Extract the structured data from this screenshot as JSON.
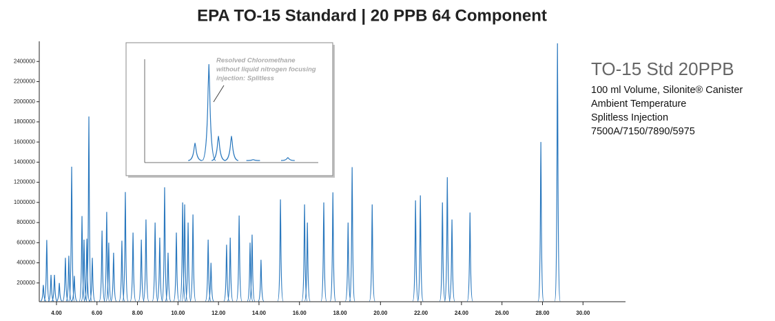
{
  "chart_data": [
    {
      "type": "chromatogram",
      "title": "EPA TO-15 Standard | 20 PPB 64 Component",
      "subtitle": "TO-15 Std 20PPB",
      "notes": [
        "100 ml Volume, Silonite® Canister",
        "Ambient Temperature",
        "Splitless Injection",
        "7500A/7150/7890/5975"
      ],
      "color": "#2a78be",
      "x": [
        3.35,
        3.52,
        3.73,
        3.9,
        4.14,
        4.44,
        4.61,
        4.75,
        4.88,
        5.26,
        5.36,
        5.5,
        5.6,
        5.77,
        6.25,
        6.48,
        6.58,
        6.82,
        7.23,
        7.4,
        7.78,
        8.19,
        8.42,
        8.87,
        9.1,
        9.34,
        9.51,
        9.92,
        10.23,
        10.33,
        10.5,
        10.74,
        11.49,
        11.63,
        12.4,
        12.58,
        13.02,
        13.56,
        13.66,
        14.1,
        15.06,
        16.25,
        16.39,
        17.2,
        17.65,
        18.4,
        18.6,
        19.59,
        21.73,
        21.97,
        23.06,
        23.3,
        23.53,
        24.42,
        27.92,
        28.74
      ],
      "values": [
        180000,
        627000,
        280000,
        280000,
        200000,
        450000,
        470000,
        1355000,
        270000,
        865000,
        630000,
        640000,
        1853000,
        450000,
        720000,
        906000,
        600000,
        500000,
        620000,
        1103000,
        700000,
        630000,
        830000,
        800000,
        650000,
        1150000,
        500000,
        700000,
        1000000,
        980000,
        800000,
        880000,
        630000,
        400000,
        580000,
        650000,
        870000,
        600000,
        680000,
        430000,
        1030000,
        980000,
        800000,
        1000000,
        1100000,
        800000,
        1350000,
        980000,
        1020000,
        1070000,
        1000000,
        1250000,
        830000,
        900000,
        1600000,
        2580000
      ],
      "xlim": [
        3.15,
        32.1
      ],
      "ylim": [
        0,
        2600000
      ],
      "xticks": [
        {
          "value": 4,
          "label": "4.00"
        },
        {
          "value": 6,
          "label": "6.00"
        },
        {
          "value": 8,
          "label": "8.00"
        },
        {
          "value": 10,
          "label": "10.00"
        },
        {
          "value": 12,
          "label": "12.00"
        },
        {
          "value": 14,
          "label": "14.00"
        },
        {
          "value": 16,
          "label": "16.00"
        },
        {
          "value": 18,
          "label": "18.00"
        },
        {
          "value": 20,
          "label": "20.00"
        },
        {
          "value": 22,
          "label": "22.00"
        },
        {
          "value": 24,
          "label": "24.00"
        },
        {
          "value": 26,
          "label": "26.00"
        },
        {
          "value": 28,
          "label": "28.00"
        },
        {
          "value": 30,
          "label": "30.00"
        }
      ],
      "yticks": [
        200000,
        400000,
        600000,
        800000,
        1000000,
        1200000,
        1400000,
        1600000,
        1800000,
        2000000,
        2200000,
        2400000
      ]
    },
    {
      "type": "chromatogram",
      "annotation": [
        "Resolved Chloromethane",
        "without liquid nitrogen focusing",
        "injection: Splitless"
      ],
      "color": "#2a78be",
      "x": [
        2.9,
        3.7,
        4.25,
        5.0,
        6.25,
        8.25
      ],
      "values": [
        0.2,
        1.0,
        0.27,
        0.27,
        0.03,
        0.05
      ],
      "xlim": [
        0,
        10
      ],
      "ylim": [
        0,
        1.05
      ]
    }
  ]
}
